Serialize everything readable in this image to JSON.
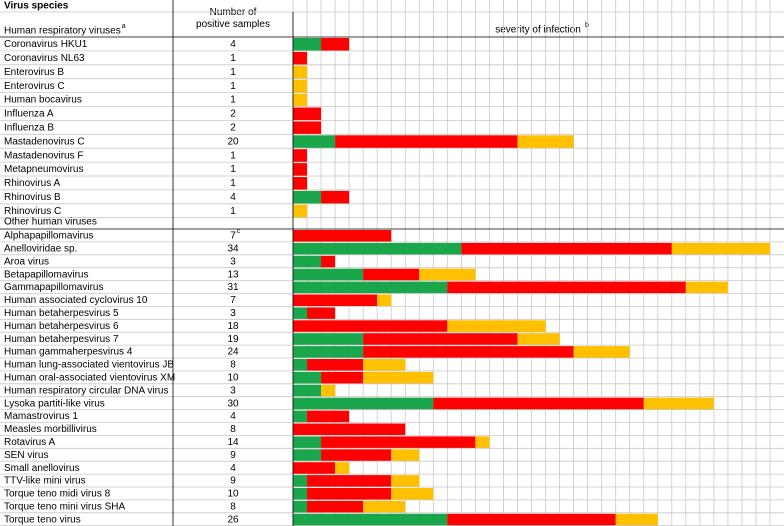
{
  "header": {
    "title": "Virus species",
    "count_label": "Number of positive samples",
    "severity_label": "severity of infection",
    "severity_note": "b"
  },
  "segment_colors": [
    "#1aa64b",
    "#ff0000",
    "#ffc000"
  ],
  "sections": [
    {
      "title": "Human respiratory viruses",
      "title_note": "a",
      "rows": [
        {
          "name": "Coronavirus HKU1",
          "samples": 4,
          "segments": [
            2,
            2,
            0
          ]
        },
        {
          "name": "Coronavirus NL63",
          "samples": 1,
          "segments": [
            0,
            1,
            0
          ]
        },
        {
          "name": "Enterovirus B",
          "samples": 1,
          "segments": [
            0,
            0,
            1
          ]
        },
        {
          "name": "Enterovirus C",
          "samples": 1,
          "segments": [
            0,
            0,
            1
          ]
        },
        {
          "name": "Human bocavirus",
          "samples": 1,
          "segments": [
            0,
            0,
            1
          ]
        },
        {
          "name": "Influenza A",
          "samples": 2,
          "segments": [
            0,
            2,
            0
          ]
        },
        {
          "name": "Influenza B",
          "samples": 2,
          "segments": [
            0,
            2,
            0
          ]
        },
        {
          "name": "Mastadenovirus C",
          "samples": 20,
          "segments": [
            3,
            13,
            4
          ]
        },
        {
          "name": "Mastadenovirus F",
          "samples": 1,
          "segments": [
            0,
            1,
            0
          ]
        },
        {
          "name": "Metapneumovirus",
          "samples": 1,
          "segments": [
            0,
            1,
            0
          ]
        },
        {
          "name": "Rhinovirus A",
          "samples": 1,
          "segments": [
            0,
            1,
            0
          ]
        },
        {
          "name": "Rhinovirus B",
          "samples": 4,
          "segments": [
            2,
            2,
            0
          ]
        },
        {
          "name": "Rhinovirus C",
          "samples": 1,
          "segments": [
            0,
            0,
            1
          ]
        }
      ]
    },
    {
      "title": "Other human viruses",
      "rows": [
        {
          "name": "Alphapapillomavirus",
          "samples": 7,
          "samples_note": "c",
          "segments": [
            0,
            7,
            0
          ]
        },
        {
          "name": "Anelloviridae sp.",
          "samples": 34,
          "segments": [
            12,
            15,
            7
          ]
        },
        {
          "name": "Aroa virus",
          "samples": 3,
          "segments": [
            2,
            1,
            0
          ]
        },
        {
          "name": "Betapapillomavirus",
          "samples": 13,
          "segments": [
            5,
            4,
            4
          ]
        },
        {
          "name": "Gammapapillomavirus",
          "samples": 31,
          "segments": [
            11,
            17,
            3
          ]
        },
        {
          "name": "Human associated cyclovirus 10",
          "samples": 7,
          "segments": [
            0,
            6,
            1
          ]
        },
        {
          "name": "Human betaherpesvirus 5",
          "samples": 3,
          "segments": [
            1,
            2,
            0
          ]
        },
        {
          "name": "Human betaherpesvirus 6",
          "samples": 18,
          "segments": [
            0,
            11,
            7
          ]
        },
        {
          "name": "Human betaherpesvirus 7",
          "samples": 19,
          "segments": [
            5,
            11,
            3
          ]
        },
        {
          "name": "Human gammaherpesvirus 4",
          "samples": 24,
          "segments": [
            5,
            15,
            4
          ]
        },
        {
          "name": "Human lung-associated vientovirus JB",
          "samples": 8,
          "segments": [
            1,
            4,
            3
          ]
        },
        {
          "name": "Human oral-associated vientovirus XM",
          "samples": 10,
          "segments": [
            2,
            3,
            5
          ]
        },
        {
          "name": "Human respiratory circular DNA virus",
          "samples": 3,
          "segments": [
            2,
            0,
            1
          ]
        },
        {
          "name": "Lysoka partiti-like virus",
          "samples": 30,
          "segments": [
            10,
            15,
            5
          ]
        },
        {
          "name": "Mamastrovirus 1",
          "samples": 4,
          "segments": [
            1,
            3,
            0
          ]
        },
        {
          "name": "Measles morbillivirus",
          "samples": 8,
          "segments": [
            0,
            8,
            0
          ]
        },
        {
          "name": "Rotavirus A",
          "samples": 14,
          "segments": [
            2,
            11,
            1
          ]
        },
        {
          "name": "SEN virus",
          "samples": 9,
          "segments": [
            2,
            5,
            2
          ]
        },
        {
          "name": "Small anellovirus",
          "samples": 4,
          "segments": [
            0,
            3,
            1
          ]
        },
        {
          "name": "TTV-like mini virus",
          "samples": 9,
          "segments": [
            1,
            6,
            2
          ]
        },
        {
          "name": "Torque teno midi virus 8",
          "samples": 10,
          "segments": [
            1,
            6,
            3
          ]
        },
        {
          "name": "Torque teno mini virus SHA",
          "samples": 8,
          "segments": [
            1,
            4,
            3
          ]
        },
        {
          "name": "Torque teno virus",
          "samples": 26,
          "segments": [
            11,
            12,
            3
          ]
        }
      ]
    }
  ]
}
